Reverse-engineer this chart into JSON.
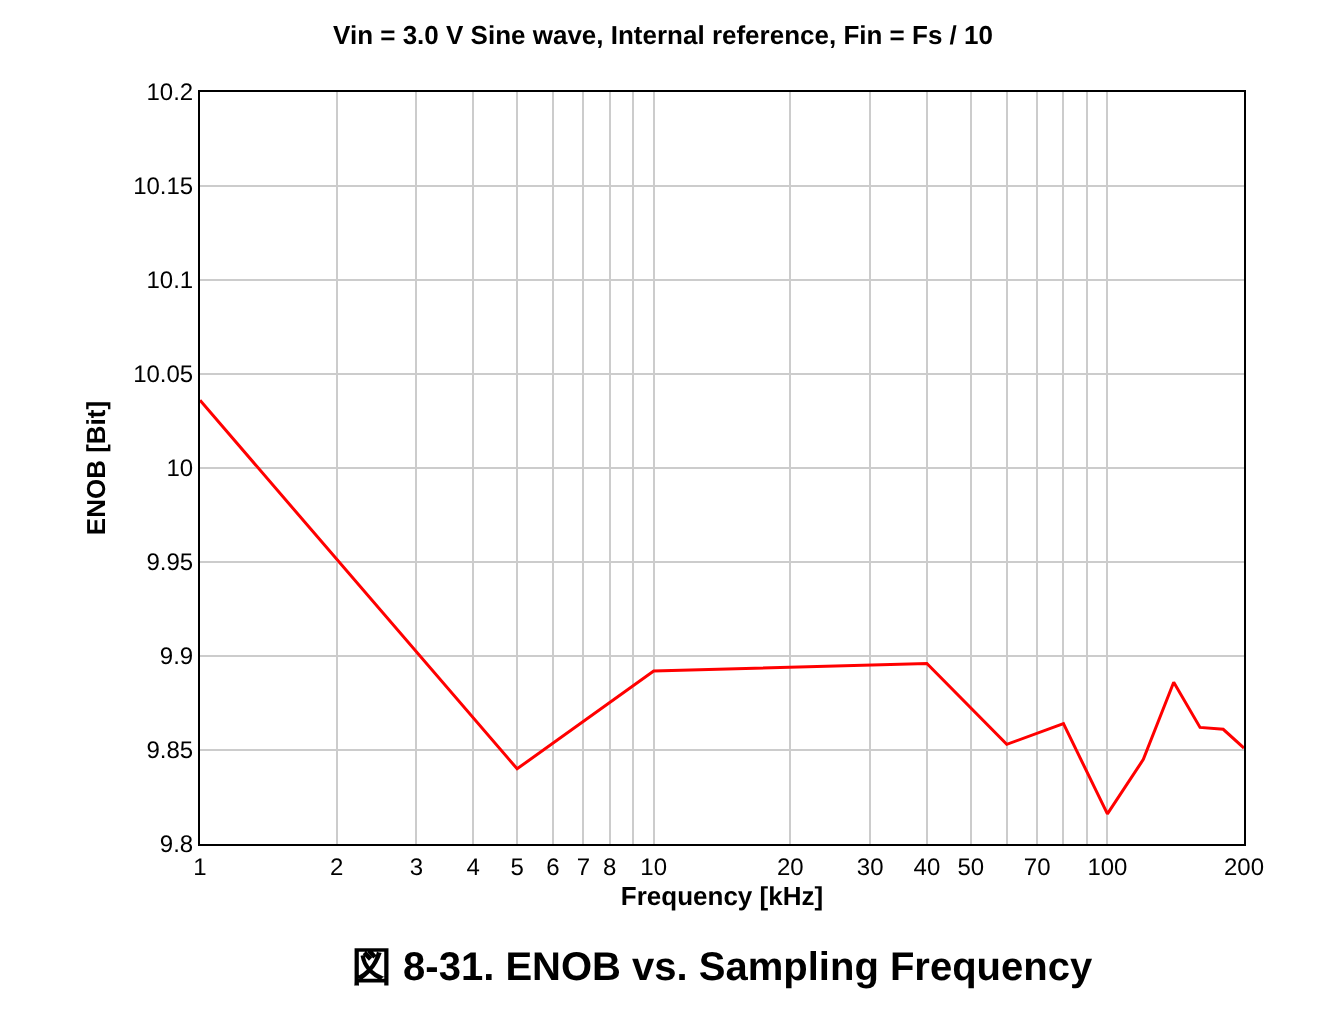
{
  "chart_data": {
    "type": "line",
    "title": "Vin = 3.0 V Sine wave, Internal reference, Fin = Fs / 10",
    "xlabel": "Frequency [kHz]",
    "ylabel": "ENOB [Bit]",
    "annotations": [
      "図 8-31. ENOB vs. Sampling Frequency"
    ],
    "x": [
      1,
      5,
      10,
      40,
      60,
      80,
      100,
      120,
      140,
      160,
      180,
      200
    ],
    "series": [
      {
        "color": "#ff0000",
        "values": [
          10.036,
          9.84,
          9.892,
          9.896,
          9.853,
          9.864,
          9.816,
          9.845,
          9.886,
          9.862,
          9.861,
          9.851
        ]
      }
    ],
    "log": "x",
    "xlim": [
      1,
      200
    ],
    "xticks": [
      1,
      2,
      3,
      4,
      5,
      6,
      7,
      8,
      {
        "value": 9,
        "label": null
      },
      10,
      20,
      30,
      40,
      50,
      {
        "value": 60,
        "label": null
      },
      70,
      {
        "value": 80,
        "label": null
      },
      {
        "value": 90,
        "label": null
      },
      100,
      200
    ],
    "ylim": [
      9.8,
      10.2
    ],
    "yticks": [
      9.8,
      9.85,
      9.9,
      9.95,
      10,
      10.05,
      10.1,
      10.15,
      10.2
    ],
    "grid": true,
    "marker": "none",
    "line_style": "solid"
  }
}
